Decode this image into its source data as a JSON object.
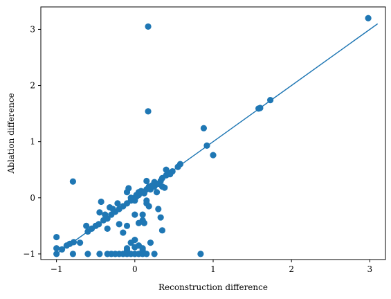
{
  "chart_data": {
    "type": "scatter",
    "xlabel": "Reconstruction difference",
    "ylabel": "Ablation difference",
    "xlim": [
      -1.2,
      3.2
    ],
    "ylim": [
      -1.1,
      3.4
    ],
    "xticks": [
      -1,
      0,
      1,
      2,
      3
    ],
    "yticks": [
      -1,
      0,
      1,
      2,
      3
    ],
    "color": "#1f77b4",
    "grid": false,
    "legend": false,
    "fit_line": {
      "x": [
        -1.0,
        3.1
      ],
      "y": [
        -1.0,
        3.1
      ]
    },
    "points": [
      [
        0.17,
        3.05
      ],
      [
        2.98,
        3.2
      ],
      [
        1.73,
        1.74
      ],
      [
        1.58,
        1.59
      ],
      [
        1.6,
        1.6
      ],
      [
        0.17,
        1.54
      ],
      [
        0.88,
        1.24
      ],
      [
        0.92,
        0.93
      ],
      [
        1.0,
        0.76
      ],
      [
        -0.79,
        0.29
      ],
      [
        0.84,
        -1.0
      ],
      [
        -1.0,
        -1.0
      ],
      [
        -1.0,
        -0.9
      ],
      [
        -1.0,
        -0.7
      ],
      [
        -0.93,
        -0.92
      ],
      [
        -0.87,
        -0.85
      ],
      [
        -0.83,
        -0.82
      ],
      [
        -0.78,
        -0.79
      ],
      [
        -0.7,
        -0.8
      ],
      [
        -0.79,
        -1.0
      ],
      [
        -0.6,
        -1.0
      ],
      [
        -0.45,
        -1.0
      ],
      [
        -0.35,
        -1.0
      ],
      [
        -0.3,
        -1.0
      ],
      [
        -0.25,
        -1.0
      ],
      [
        -0.2,
        -1.0
      ],
      [
        -0.15,
        -1.0
      ],
      [
        -0.1,
        -1.0
      ],
      [
        -0.05,
        -1.0
      ],
      [
        0.0,
        -1.0
      ],
      [
        0.05,
        -1.0
      ],
      [
        0.1,
        -1.0
      ],
      [
        0.15,
        -1.0
      ],
      [
        0.25,
        -1.0
      ],
      [
        -0.1,
        -0.93
      ],
      [
        0.1,
        -0.93
      ],
      [
        0.0,
        -0.88
      ],
      [
        -0.6,
        -0.6
      ],
      [
        -0.55,
        -0.55
      ],
      [
        -0.5,
        -0.5
      ],
      [
        -0.46,
        -0.47
      ],
      [
        -0.62,
        -0.5
      ],
      [
        -0.4,
        -0.4
      ],
      [
        -0.35,
        -0.37
      ],
      [
        -0.3,
        -0.3
      ],
      [
        -0.25,
        -0.25
      ],
      [
        -0.2,
        -0.2
      ],
      [
        -0.15,
        -0.15
      ],
      [
        -0.1,
        -0.1
      ],
      [
        -0.05,
        -0.05
      ],
      [
        0.0,
        0.0
      ],
      [
        0.05,
        0.05
      ],
      [
        0.1,
        0.1
      ],
      [
        0.15,
        0.15
      ],
      [
        -0.45,
        -0.26
      ],
      [
        -0.38,
        -0.3
      ],
      [
        -0.32,
        -0.17
      ],
      [
        -0.28,
        -0.2
      ],
      [
        -0.22,
        -0.1
      ],
      [
        -0.43,
        -0.07
      ],
      [
        -0.35,
        -0.55
      ],
      [
        -0.2,
        -0.47
      ],
      [
        -0.15,
        -0.62
      ],
      [
        -0.1,
        -0.5
      ],
      [
        0.0,
        -0.3
      ],
      [
        0.05,
        -0.45
      ],
      [
        0.1,
        -0.4
      ],
      [
        0.12,
        -0.45
      ],
      [
        0.0,
        -0.05
      ],
      [
        0.02,
        0.05
      ],
      [
        -0.1,
        0.1
      ],
      [
        -0.08,
        0.17
      ],
      [
        -0.05,
        0.0
      ],
      [
        0.02,
        0.02
      ],
      [
        0.05,
        0.1
      ],
      [
        0.08,
        0.12
      ],
      [
        0.12,
        0.08
      ],
      [
        0.15,
        -0.1
      ],
      [
        0.18,
        -0.15
      ],
      [
        0.15,
        0.3
      ],
      [
        0.18,
        0.2
      ],
      [
        0.2,
        0.15
      ],
      [
        0.25,
        0.2
      ],
      [
        0.3,
        0.25
      ],
      [
        0.33,
        0.3
      ],
      [
        0.35,
        0.35
      ],
      [
        0.4,
        0.4
      ],
      [
        0.42,
        0.45
      ],
      [
        0.45,
        0.42
      ],
      [
        0.4,
        0.5
      ],
      [
        0.48,
        0.47
      ],
      [
        0.55,
        0.55
      ],
      [
        0.58,
        0.6
      ],
      [
        0.35,
        0.2
      ],
      [
        0.3,
        -0.2
      ],
      [
        0.33,
        -0.35
      ],
      [
        0.35,
        -0.58
      ],
      [
        0.28,
        0.1
      ],
      [
        0.38,
        0.18
      ],
      [
        0.1,
        -0.3
      ],
      [
        0.0,
        -0.75
      ],
      [
        -0.05,
        -0.8
      ],
      [
        -0.1,
        -0.9
      ],
      [
        0.05,
        -0.85
      ],
      [
        0.1,
        -0.9
      ],
      [
        0.2,
        -0.8
      ],
      [
        0.15,
        -0.05
      ],
      [
        0.22,
        0.22
      ],
      [
        0.25,
        0.28
      ]
    ]
  }
}
